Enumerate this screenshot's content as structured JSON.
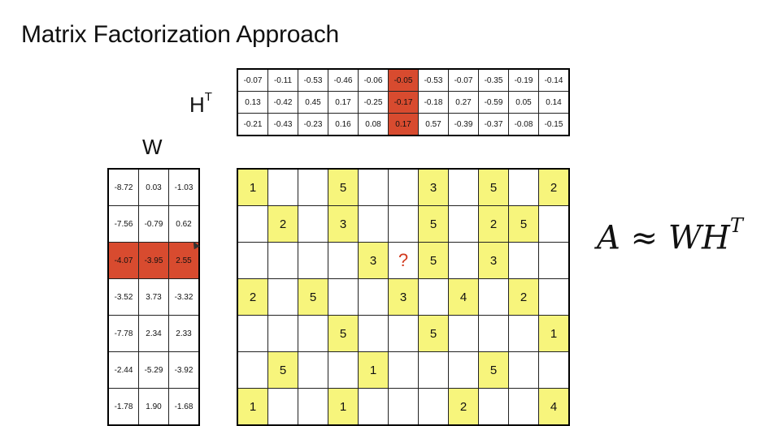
{
  "slide": {
    "title": "Matrix Factorization Approach",
    "ht_label_base": "H",
    "ht_label_sup": "T",
    "w_label": "W",
    "formula_lhs": "A",
    "formula_op": "≈",
    "formula_rhs": "WH",
    "formula_sup": "T"
  },
  "colors": {
    "highlight": "#d84b2f",
    "rating": "#f7f57c",
    "question": "#d23a1f"
  },
  "ht_matrix": {
    "highlight_col": 5,
    "rows": [
      [
        "-0.07",
        "-0.11",
        "-0.53",
        "-0.46",
        "-0.06",
        "-0.05",
        "-0.53",
        "-0.07",
        "-0.35",
        "-0.19",
        "-0.14"
      ],
      [
        "0.13",
        "-0.42",
        "0.45",
        "0.17",
        "-0.25",
        "-0.17",
        "-0.18",
        "0.27",
        "-0.59",
        "0.05",
        "0.14"
      ],
      [
        "-0.21",
        "-0.43",
        "-0.23",
        "0.16",
        "0.08",
        "0.17",
        "0.57",
        "-0.39",
        "-0.37",
        "-0.08",
        "-0.15"
      ]
    ]
  },
  "w_matrix": {
    "highlight_row": 2,
    "rows": [
      [
        "-8.72",
        "0.03",
        "-1.03"
      ],
      [
        "-7.56",
        "-0.79",
        "0.62"
      ],
      [
        "-4.07",
        "-3.95",
        "2.55"
      ],
      [
        "-3.52",
        "3.73",
        "-3.32"
      ],
      [
        "-7.78",
        "2.34",
        "2.33"
      ],
      [
        "-2.44",
        "-5.29",
        "-3.92"
      ],
      [
        "-1.78",
        "1.90",
        "-1.68"
      ]
    ]
  },
  "a_matrix": {
    "rows": [
      [
        "1",
        "",
        "",
        "5",
        "",
        "",
        "3",
        "",
        "5",
        "",
        "2"
      ],
      [
        "",
        "2",
        "",
        "3",
        "",
        "",
        "5",
        "",
        "2",
        "5",
        ""
      ],
      [
        "",
        "",
        "",
        "",
        "3",
        "?",
        "5",
        "",
        "3",
        "",
        ""
      ],
      [
        "2",
        "",
        "5",
        "",
        "",
        "3",
        "",
        "4",
        "",
        "2",
        ""
      ],
      [
        "",
        "",
        "",
        "5",
        "",
        "",
        "5",
        "",
        "",
        "",
        "1"
      ],
      [
        "",
        "5",
        "",
        "",
        "1",
        "",
        "",
        "",
        "5",
        "",
        ""
      ],
      [
        "1",
        "",
        "",
        "1",
        "",
        "",
        "",
        "2",
        "",
        "",
        "4"
      ]
    ]
  }
}
